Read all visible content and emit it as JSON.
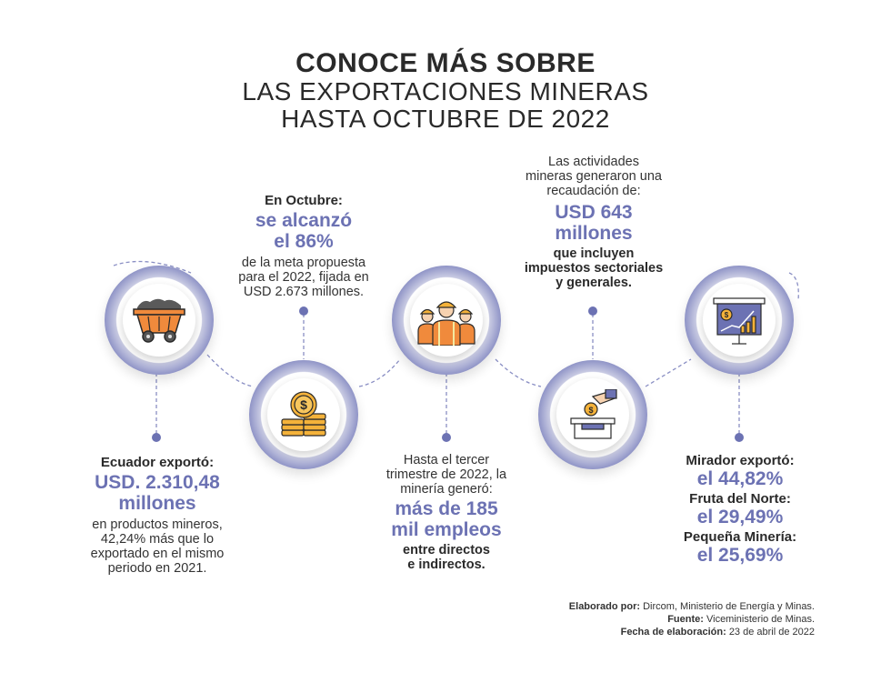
{
  "title": {
    "line1": "CONOCE MÁS SOBRE",
    "line2": "LAS EXPORTACIONES MINERAS",
    "line3": "HASTA OCTUBRE DE 2022"
  },
  "items": {
    "exports": {
      "label": "Ecuador exportó:",
      "value_line1": "USD. 2.310,48",
      "value_line2": "millones",
      "desc": [
        "en productos mineros,",
        "42,24% más que lo",
        "exportado en el mismo",
        "periodo en 2021."
      ],
      "icon": "mining-cart-icon"
    },
    "goal": {
      "label": "En Octubre:",
      "value_line1": "se alcanzó",
      "value_line2": "el 86%",
      "desc": [
        "de la meta propuesta",
        "para el 2022, fijada en",
        "USD 2.673 millones."
      ],
      "icon": "coins-icon"
    },
    "jobs": {
      "intro": [
        "Hasta el tercer",
        "trimestre de 2022, la",
        "minería generó:"
      ],
      "value_line1": "más de 185",
      "value_line2": "mil empleos",
      "desc": [
        "entre directos",
        "e indirectos."
      ],
      "icon": "miners-icon"
    },
    "revenue": {
      "intro": [
        "Las actividades",
        "mineras generaron una",
        "recaudación de:"
      ],
      "value_line1": "USD 643",
      "value_line2": "millones",
      "desc": [
        "que incluyen",
        "impuestos sectoriales",
        "y generales."
      ],
      "icon": "tax-deposit-icon"
    },
    "projects": {
      "rows": [
        {
          "label": "Mirador exportó:",
          "value": "el 44,82%"
        },
        {
          "label": "Fruta del Norte:",
          "value": "el 29,49%"
        },
        {
          "label": "Pequeña Minería:",
          "value": "el 25,69%"
        }
      ],
      "icon": "presentation-chart-icon"
    }
  },
  "credits": {
    "made_by_label": "Elaborado por:",
    "made_by": "Dircom, Ministerio de Energía y Minas.",
    "source_label": "Fuente:",
    "source": "Viceministerio de Minas.",
    "date_label": "Fecha de elaboración:",
    "date": "23 de abril de 2022"
  },
  "colors": {
    "accent": "#6c72b3",
    "orange": "#f08a3c",
    "yellow": "#f4b23a",
    "dark": "#2a2a2a"
  }
}
